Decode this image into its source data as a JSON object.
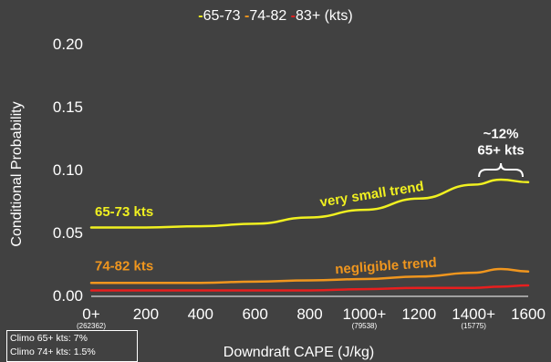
{
  "chart_data": {
    "type": "line",
    "title": "",
    "legend": {
      "position": "top-center",
      "entries": [
        "65-73",
        "74-82",
        "83+"
      ],
      "suffix": "(kts)"
    },
    "xlabel": "Downdraft CAPE (J/kg)",
    "ylabel": "Conditional Probability",
    "xlim": [
      0,
      1600
    ],
    "ylim": [
      0,
      0.2
    ],
    "grid": false,
    "x_ticks": [
      {
        "value": 0,
        "label": "0+",
        "sublabel": "(262362)"
      },
      {
        "value": 200,
        "label": "200",
        "sublabel": ""
      },
      {
        "value": 400,
        "label": "400",
        "sublabel": ""
      },
      {
        "value": 600,
        "label": "600",
        "sublabel": ""
      },
      {
        "value": 800,
        "label": "800",
        "sublabel": ""
      },
      {
        "value": 1000,
        "label": "1000+",
        "sublabel": "(79538)"
      },
      {
        "value": 1200,
        "label": "1200",
        "sublabel": ""
      },
      {
        "value": 1400,
        "label": "1400+",
        "sublabel": "(15775)"
      },
      {
        "value": 1600,
        "label": "1600",
        "sublabel": ""
      }
    ],
    "y_ticks": [
      {
        "value": 0,
        "label": "0.00"
      },
      {
        "value": 0.05,
        "label": "0.05"
      },
      {
        "value": 0.1,
        "label": "0.10"
      },
      {
        "value": 0.15,
        "label": "0.15"
      },
      {
        "value": 0.2,
        "label": "0.20"
      }
    ],
    "series": [
      {
        "name": "65-73",
        "color": "#f0f020",
        "x": [
          0,
          200,
          400,
          600,
          800,
          1000,
          1200,
          1400,
          1500,
          1600
        ],
        "values": [
          0.054,
          0.054,
          0.055,
          0.057,
          0.062,
          0.068,
          0.077,
          0.088,
          0.092,
          0.09
        ]
      },
      {
        "name": "74-82",
        "color": "#f0961e",
        "x": [
          0,
          200,
          400,
          600,
          800,
          1000,
          1200,
          1400,
          1500,
          1600
        ],
        "values": [
          0.01,
          0.01,
          0.01,
          0.011,
          0.012,
          0.013,
          0.015,
          0.018,
          0.021,
          0.019
        ]
      },
      {
        "name": "83+",
        "color": "#e81e1e",
        "x": [
          0,
          200,
          400,
          600,
          800,
          1000,
          1200,
          1400,
          1500,
          1600
        ],
        "values": [
          0.004,
          0.004,
          0.004,
          0.004,
          0.004,
          0.005,
          0.006,
          0.006,
          0.007,
          0.008
        ]
      }
    ],
    "annotations": [
      {
        "text": "65-73 kts",
        "color": "#f0f020",
        "x": 0,
        "y": 0.063,
        "anchor": "start",
        "rotate": 0
      },
      {
        "text": "74-82 kts",
        "color": "#f0961e",
        "x": 0,
        "y": 0.02,
        "anchor": "start",
        "rotate": 0
      },
      {
        "text": "very small trend",
        "color": "#f0f020",
        "x": 1030,
        "y": 0.077,
        "anchor": "middle",
        "rotate": -9
      },
      {
        "text": "negligible trend",
        "color": "#f0961e",
        "x": 1080,
        "y": 0.02,
        "anchor": "middle",
        "rotate": -4
      },
      {
        "text": "~12%",
        "color": "#ffffff",
        "x": 1500,
        "y": 0.125,
        "anchor": "middle",
        "rotate": 0
      },
      {
        "text": "65+ kts",
        "color": "#ffffff",
        "x": 1500,
        "y": 0.112,
        "anchor": "middle",
        "rotate": 0
      }
    ],
    "brace": {
      "x_from": 1420,
      "x_to": 1580,
      "y": 0.1
    }
  },
  "climo_box": {
    "line1": "Climo 65+ kts: 7%",
    "line2": "Climo 74+ kts: 1.5%"
  }
}
